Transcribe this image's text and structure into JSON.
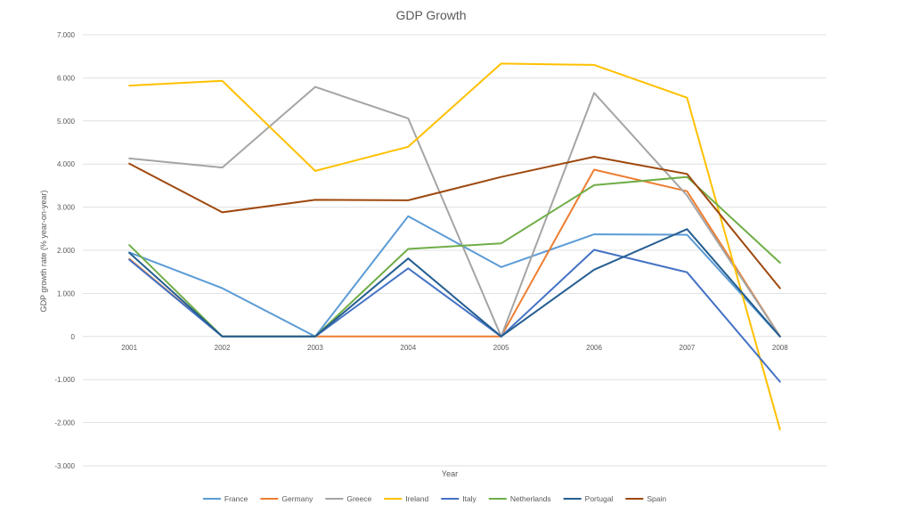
{
  "chart_data": {
    "type": "line",
    "title": "GDP Growth",
    "xlabel": "Year",
    "ylabel": "GDP growth rate (% year-on-year)",
    "ylim": [
      -3,
      7
    ],
    "y_tick_step": 1,
    "y_tick_labels": [
      "-3.000",
      "-2.000",
      "-1.000",
      "0",
      "1.000",
      "2.000",
      "3.000",
      "4.000",
      "5.000",
      "6.000",
      "7.000"
    ],
    "grid": true,
    "legend_position": "bottom",
    "categories": [
      "2001",
      "2002",
      "2003",
      "2004",
      "2005",
      "2006",
      "2007",
      "2008"
    ],
    "series": [
      {
        "name": "France",
        "color": "#5B9BD5",
        "values": [
          1.95,
          1.12,
          0.0,
          2.79,
          1.61,
          2.37,
          2.36,
          0.0
        ]
      },
      {
        "name": "Germany",
        "color": "#ED7D31",
        "values": [
          1.8,
          0.0,
          0.0,
          0.0,
          0.0,
          3.87,
          3.37,
          0.0
        ]
      },
      {
        "name": "Greece",
        "color": "#A5A5A5",
        "values": [
          4.13,
          3.92,
          5.79,
          5.06,
          0.0,
          5.65,
          3.27,
          0.0
        ]
      },
      {
        "name": "Ireland",
        "color": "#FFC000",
        "values": [
          5.82,
          5.93,
          3.84,
          4.4,
          6.33,
          6.3,
          5.54,
          -2.16
        ]
      },
      {
        "name": "Italy",
        "color": "#4472C4",
        "values": [
          1.78,
          0.0,
          0.0,
          1.58,
          0.0,
          2.01,
          1.49,
          -1.05
        ]
      },
      {
        "name": "Netherlands",
        "color": "#70AD47",
        "values": [
          2.12,
          0.0,
          0.0,
          2.03,
          2.16,
          3.51,
          3.7,
          1.71
        ]
      },
      {
        "name": "Portugal",
        "color": "#255E91",
        "values": [
          1.94,
          0.0,
          0.0,
          1.81,
          0.0,
          1.55,
          2.49,
          0.0
        ]
      },
      {
        "name": "Spain",
        "color": "#9E480E",
        "values": [
          4.01,
          2.88,
          3.17,
          3.16,
          3.7,
          4.17,
          3.77,
          1.12
        ]
      }
    ]
  }
}
